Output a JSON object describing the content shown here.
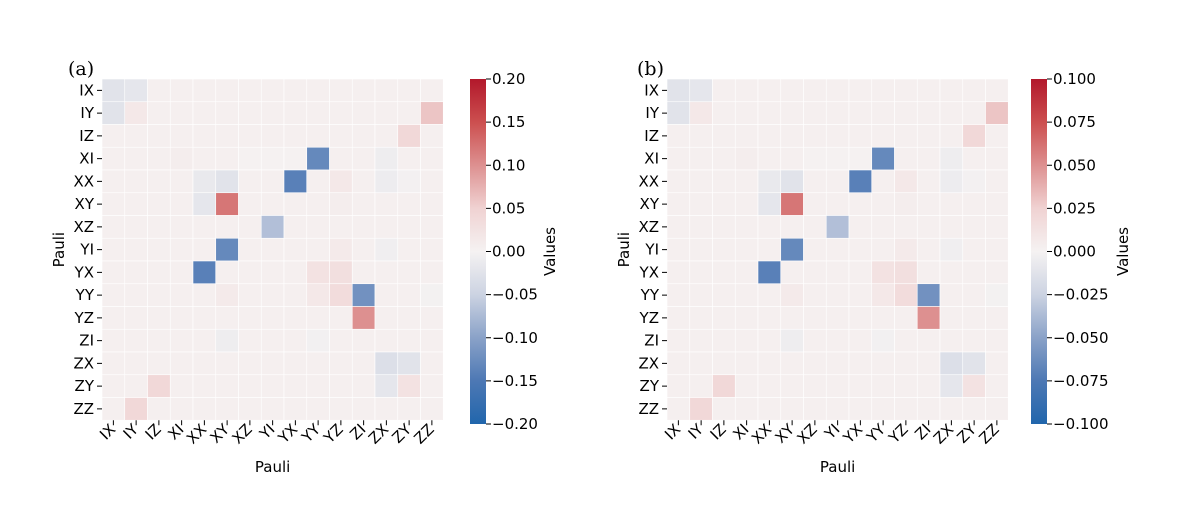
{
  "chart_data": [
    {
      "type": "heatmap",
      "panel_label": "(a)",
      "xlabel": "Pauli",
      "ylabel": "Pauli",
      "row_labels": [
        "IX",
        "IY",
        "IZ",
        "XI",
        "XX",
        "XY",
        "XZ",
        "YI",
        "YX",
        "YY",
        "YZ",
        "ZI",
        "ZX",
        "ZY",
        "ZZ"
      ],
      "col_labels": [
        "IX",
        "IY",
        "IZ",
        "XI",
        "XX",
        "XY",
        "XZ",
        "YI",
        "YX",
        "YY",
        "YZ",
        "ZI",
        "ZX",
        "ZY",
        "ZZ"
      ],
      "colorbar": {
        "label": "Values",
        "vmin": -0.2,
        "vmax": 0.2,
        "ticks": [
          "0.20",
          "0.15",
          "0.10",
          "0.05",
          "0.00",
          "−0.05",
          "−0.10",
          "−0.15",
          "−0.20"
        ],
        "tick_values": [
          0.2,
          0.15,
          0.1,
          0.05,
          0.0,
          -0.05,
          -0.1,
          -0.15,
          -0.2
        ]
      },
      "baseline": 0.005,
      "cells": [
        [
          0,
          0,
          -0.025
        ],
        [
          0,
          1,
          -0.02
        ],
        [
          1,
          0,
          -0.025
        ],
        [
          1,
          1,
          0.015
        ],
        [
          1,
          14,
          0.06
        ],
        [
          2,
          13,
          0.04
        ],
        [
          3,
          3,
          0.008
        ],
        [
          3,
          6,
          0.002
        ],
        [
          3,
          7,
          0.002
        ],
        [
          3,
          8,
          0.002
        ],
        [
          3,
          9,
          -0.13
        ],
        [
          3,
          12,
          -0.008
        ],
        [
          4,
          4,
          -0.015
        ],
        [
          4,
          5,
          -0.025
        ],
        [
          4,
          8,
          -0.14
        ],
        [
          4,
          10,
          0.015
        ],
        [
          4,
          12,
          -0.01
        ],
        [
          4,
          13,
          -0.003
        ],
        [
          5,
          4,
          -0.02
        ],
        [
          5,
          5,
          0.12
        ],
        [
          5,
          10,
          0.008
        ],
        [
          6,
          7,
          -0.07
        ],
        [
          7,
          5,
          -0.13
        ],
        [
          7,
          10,
          0.012
        ],
        [
          7,
          12,
          -0.006
        ],
        [
          8,
          4,
          -0.14
        ],
        [
          8,
          9,
          0.025
        ],
        [
          8,
          10,
          0.03
        ],
        [
          9,
          5,
          0.012
        ],
        [
          9,
          9,
          0.015
        ],
        [
          9,
          10,
          0.035
        ],
        [
          9,
          11,
          -0.12
        ],
        [
          9,
          14,
          -0.002
        ],
        [
          10,
          11,
          0.1
        ],
        [
          11,
          5,
          -0.008
        ],
        [
          11,
          9,
          -0.004
        ],
        [
          12,
          12,
          -0.03
        ],
        [
          12,
          13,
          -0.025
        ],
        [
          13,
          2,
          0.04
        ],
        [
          13,
          12,
          -0.02
        ],
        [
          13,
          13,
          0.025
        ],
        [
          14,
          1,
          0.04
        ]
      ]
    },
    {
      "type": "heatmap",
      "panel_label": "(b)",
      "xlabel": "Pauli",
      "ylabel": "Pauli",
      "row_labels": [
        "IX",
        "IY",
        "IZ",
        "XI",
        "XX",
        "XY",
        "XZ",
        "YI",
        "YX",
        "YY",
        "YZ",
        "ZI",
        "ZX",
        "ZY",
        "ZZ"
      ],
      "col_labels": [
        "IX",
        "IY",
        "IZ",
        "XI",
        "XX",
        "XY",
        "XZ",
        "YI",
        "YX",
        "YY",
        "YZ",
        "ZI",
        "ZX",
        "ZY",
        "ZZ"
      ],
      "colorbar": {
        "label": "Values",
        "vmin": -0.1,
        "vmax": 0.1,
        "ticks": [
          "0.100",
          "0.075",
          "0.050",
          "0.025",
          "0.000",
          "−0.025",
          "−0.050",
          "−0.075",
          "−0.100"
        ],
        "tick_values": [
          0.1,
          0.075,
          0.05,
          0.025,
          0.0,
          -0.025,
          -0.05,
          -0.075,
          -0.1
        ]
      },
      "baseline": 0.0025,
      "cells": [
        [
          0,
          0,
          -0.0125
        ],
        [
          0,
          1,
          -0.01
        ],
        [
          1,
          0,
          -0.0125
        ],
        [
          1,
          1,
          0.0075
        ],
        [
          1,
          14,
          0.03
        ],
        [
          2,
          13,
          0.02
        ],
        [
          3,
          3,
          0.004
        ],
        [
          3,
          6,
          0.001
        ],
        [
          3,
          7,
          0.001
        ],
        [
          3,
          8,
          0.001
        ],
        [
          3,
          9,
          -0.065
        ],
        [
          3,
          12,
          -0.004
        ],
        [
          4,
          4,
          -0.0075
        ],
        [
          4,
          5,
          -0.0125
        ],
        [
          4,
          8,
          -0.07
        ],
        [
          4,
          10,
          0.0075
        ],
        [
          4,
          12,
          -0.005
        ],
        [
          4,
          13,
          -0.0015
        ],
        [
          5,
          4,
          -0.01
        ],
        [
          5,
          5,
          0.06
        ],
        [
          5,
          10,
          0.004
        ],
        [
          6,
          7,
          -0.035
        ],
        [
          7,
          5,
          -0.065
        ],
        [
          7,
          10,
          0.006
        ],
        [
          7,
          12,
          -0.003
        ],
        [
          8,
          4,
          -0.07
        ],
        [
          8,
          9,
          0.0125
        ],
        [
          8,
          10,
          0.015
        ],
        [
          9,
          5,
          0.006
        ],
        [
          9,
          9,
          0.0075
        ],
        [
          9,
          10,
          0.0175
        ],
        [
          9,
          11,
          -0.06
        ],
        [
          9,
          14,
          -0.001
        ],
        [
          10,
          11,
          0.05
        ],
        [
          11,
          5,
          -0.004
        ],
        [
          11,
          9,
          -0.002
        ],
        [
          12,
          12,
          -0.015
        ],
        [
          12,
          13,
          -0.0125
        ],
        [
          13,
          2,
          0.02
        ],
        [
          13,
          12,
          -0.01
        ],
        [
          13,
          13,
          0.0125
        ],
        [
          14,
          1,
          0.02
        ]
      ]
    }
  ]
}
